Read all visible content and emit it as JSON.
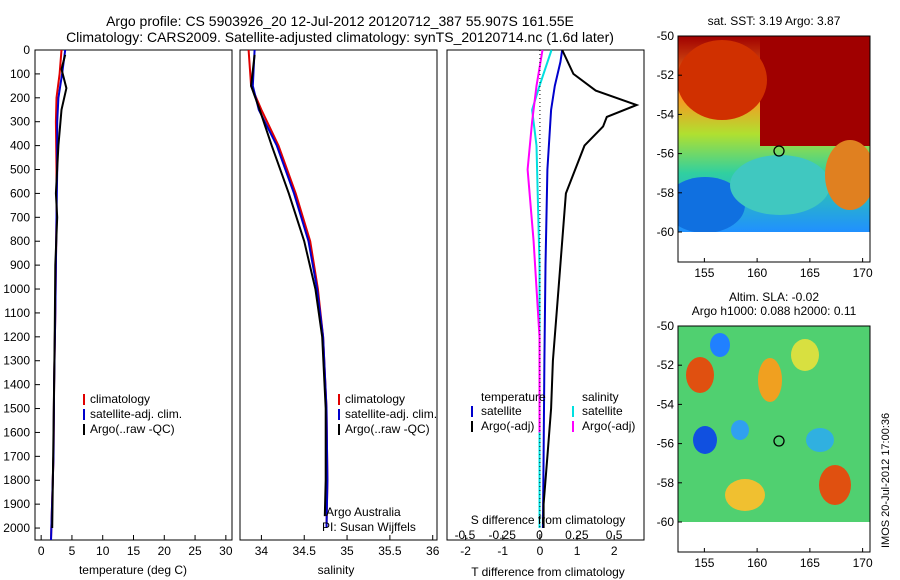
{
  "header": {
    "line1": "Argo profile: CS 5903926_20 12-Jul-2012 20120712_387 55.907S 161.55E",
    "line2": "Climatology: CARS2009. Satellite-adjusted climatology: synTS_20120714.nc (1.6d later)"
  },
  "side_stamp": "IMOS 20-Jul-2012 17:00:36",
  "credit": {
    "line1": "Argo Australia",
    "line2": "PI: Susan Wijffels"
  },
  "colors": {
    "climatology": "#e00000",
    "satellite": "#0000cc",
    "argo": "#000000",
    "sat_salinity": "#00e0e0",
    "argo_salinity_adj": "#ff00ff"
  },
  "legends": {
    "temp": [
      "climatology",
      "satellite-adj. clim.",
      "Argo(..raw -QC)"
    ],
    "sal": [
      "climatology",
      "satellite-adj. clim.",
      "Argo(..raw -QC)"
    ],
    "diff_head": [
      "temperature",
      "salinity"
    ],
    "diff_temp": [
      "satellite",
      "Argo(-adj)"
    ],
    "diff_sal": [
      "satellite",
      "Argo(-adj)"
    ]
  },
  "maps": {
    "sst_title": "sat. SST: 3.19 Argo: 3.87",
    "sla_title1": "Altim. SLA: -0.02",
    "sla_title2": "Argo h1000: 0.088 h2000: 0.11",
    "xticks": [
      "155",
      "160",
      "165",
      "170"
    ],
    "yticks": [
      "-50",
      "-52",
      "-54",
      "-56",
      "-58",
      "-60"
    ],
    "argo_position": {
      "lon": 161.55,
      "lat": -55.907
    },
    "colormap": "jet"
  },
  "chart_data": [
    {
      "type": "line",
      "name": "temperature",
      "xlabel": "temperature (deg C)",
      "ylabel": "",
      "xlim": [
        -1,
        31
      ],
      "ylim": [
        2050,
        0
      ],
      "xticks": [
        "0",
        "5",
        "10",
        "15",
        "20",
        "25",
        "30"
      ],
      "yticks": [
        "0",
        "100",
        "200",
        "300",
        "400",
        "500",
        "600",
        "700",
        "800",
        "900",
        "1000",
        "1100",
        "1200",
        "1300",
        "1400",
        "1500",
        "1600",
        "1700",
        "1800",
        "1900",
        "2000"
      ],
      "series": [
        {
          "name": "climatology",
          "x": [
            3.3,
            3.0,
            2.5,
            2.4,
            2.5,
            2.5,
            2.4,
            2.3,
            2.1,
            2.0,
            1.6
          ],
          "y": [
            0,
            100,
            200,
            300,
            500,
            700,
            900,
            1100,
            1400,
            1700,
            2050
          ]
        },
        {
          "name": "satellite-adj. clim.",
          "x": [
            3.9,
            3.4,
            2.8,
            2.6,
            2.6,
            2.5,
            2.4,
            2.3,
            2.1,
            2.0,
            1.6
          ],
          "y": [
            0,
            100,
            200,
            300,
            500,
            700,
            900,
            1100,
            1400,
            1700,
            2050
          ]
        },
        {
          "name": "Argo(..raw -QC)",
          "x": [
            3.9,
            3.3,
            4.1,
            3.3,
            2.8,
            2.4,
            2.6,
            2.3,
            2.2,
            2.0,
            1.8
          ],
          "y": [
            20,
            80,
            160,
            250,
            400,
            600,
            700,
            900,
            1200,
            1600,
            2000
          ]
        }
      ]
    },
    {
      "type": "line",
      "name": "salinity",
      "xlabel": "salinity",
      "ylabel": "",
      "xlim": [
        33.75,
        36.05
      ],
      "ylim": [
        2050,
        0
      ],
      "xticks": [
        "34",
        "34.5",
        "35",
        "35.5",
        "36"
      ],
      "series": [
        {
          "name": "climatology",
          "x": [
            33.85,
            33.88,
            34.0,
            34.2,
            34.4,
            34.57,
            34.66,
            34.72,
            34.76,
            34.77,
            34.76
          ],
          "y": [
            0,
            150,
            250,
            400,
            600,
            800,
            1000,
            1200,
            1500,
            1800,
            2000
          ]
        },
        {
          "name": "satellite-adj. clim.",
          "x": [
            33.92,
            33.9,
            33.97,
            34.18,
            34.38,
            34.55,
            34.65,
            34.72,
            34.76,
            34.77,
            34.76
          ],
          "y": [
            0,
            150,
            250,
            400,
            600,
            800,
            1000,
            1200,
            1500,
            1800,
            2000
          ]
        },
        {
          "name": "Argo(..raw -QC)",
          "x": [
            33.92,
            33.88,
            33.98,
            34.12,
            34.32,
            34.5,
            34.63,
            34.71,
            34.75,
            34.75,
            34.74
          ],
          "y": [
            20,
            150,
            250,
            400,
            600,
            800,
            1000,
            1200,
            1500,
            1800,
            1950
          ]
        }
      ]
    },
    {
      "type": "line",
      "name": "difference",
      "xlabel": "T difference from climatology",
      "xlabel2": "S difference from climatology",
      "xlim": [
        -2.5,
        2.8
      ],
      "xlim_salinity": [
        -0.62,
        0.7
      ],
      "ylim": [
        2050,
        0
      ],
      "xticks": [
        "-2",
        "-1",
        "0",
        "1",
        "2"
      ],
      "xticks_salinity": [
        "-0.5",
        "-0.25",
        "0",
        "0.25",
        "0.5"
      ],
      "series": [
        {
          "name": "temperature satellite",
          "axis": "T",
          "x": [
            0.6,
            0.55,
            0.4,
            0.3,
            0.2,
            0.15,
            0.12,
            0.1,
            0.08
          ],
          "y": [
            0,
            50,
            150,
            250,
            500,
            900,
            1300,
            1700,
            2000
          ]
        },
        {
          "name": "temperature Argo(-adj)",
          "axis": "T",
          "x": [
            0.6,
            0.9,
            1.5,
            2.6,
            1.8,
            1.7,
            1.2,
            0.7,
            0.5,
            0.35,
            0.3,
            0.2,
            0.1,
            0.1
          ],
          "y": [
            0,
            100,
            170,
            230,
            280,
            320,
            400,
            600,
            1000,
            1300,
            1500,
            1700,
            1900,
            2000
          ]
        },
        {
          "name": "salinity satellite",
          "axis": "S",
          "x": [
            0.08,
            0.0,
            -0.05,
            -0.02,
            0.0,
            0.0,
            0.0
          ],
          "y": [
            0,
            150,
            250,
            400,
            900,
            1500,
            2000
          ]
        },
        {
          "name": "salinity Argo(-adj)",
          "axis": "S",
          "x": [
            0.02,
            -0.02,
            -0.05,
            -0.08,
            -0.04,
            0.0,
            0.0
          ],
          "y": [
            0,
            150,
            300,
            500,
            800,
            1200,
            1600
          ]
        }
      ]
    }
  ]
}
